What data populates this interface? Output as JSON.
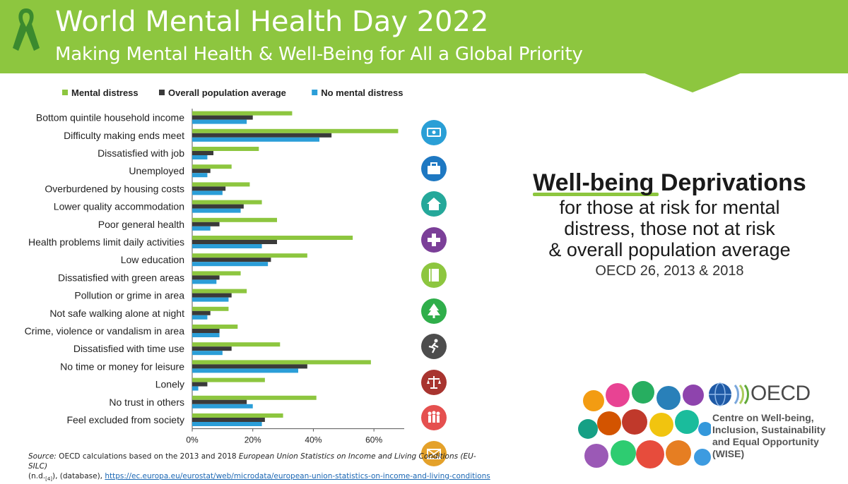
{
  "header": {
    "title": "World Mental Health Day 2022",
    "subtitle": "Making Mental Health & Well-Being for All a Global Priority"
  },
  "panel": {
    "heading_highlight": "Well-being",
    "heading_rest": " Deprivations",
    "lines": [
      "for those at risk for mental",
      "distress, those not at risk",
      "& overall population average"
    ],
    "note": "OECD 26, 2013 & 2018"
  },
  "source": {
    "label": "Source:",
    "text_before": " OECD calculations based on the 2013 and 2018 ",
    "dataset": "European Union Statistics on Income and Living Conditions (EU-SILC)",
    "ref": "(n.d.",
    "ref_sub": "[4]",
    "ref_end": "), (database), ",
    "url": "https://ec.europa.eu/eurostat/web/microdata/european-union-statistics-on-income-and-living-conditions"
  },
  "logo": {
    "oecd": "OECD",
    "wise_lines": [
      "Centre on Well-being,",
      "Inclusion, Sustainability",
      "and Equal Opportunity",
      "(WISE)"
    ]
  },
  "colors": {
    "banner": "#8dc63f",
    "mental_distress": "#8dc63f",
    "overall": "#3a3a3a",
    "no_distress": "#2b9ed8"
  },
  "icons": [
    {
      "name": "money-icon",
      "color": "#2a9fd6"
    },
    {
      "name": "briefcase-icon",
      "color": "#1e78c2"
    },
    {
      "name": "house-icon",
      "color": "#25a89a"
    },
    {
      "name": "health-cross-icon",
      "color": "#7b3f98"
    },
    {
      "name": "book-icon",
      "color": "#8dc63f"
    },
    {
      "name": "tree-icon",
      "color": "#2fae4a"
    },
    {
      "name": "runner-icon",
      "color": "#4d4d4d"
    },
    {
      "name": "scales-icon",
      "color": "#a8342f"
    },
    {
      "name": "people-icon",
      "color": "#e5504f"
    },
    {
      "name": "envelope-icon",
      "color": "#e4a12a"
    }
  ],
  "chart_data": {
    "type": "bar",
    "orientation": "horizontal",
    "categories": [
      "Bottom quintile household income",
      "Difficulty making ends meet",
      "Dissatisfied with job",
      "Unemployed",
      "Overburdened by housing costs",
      "Lower quality accommodation",
      "Poor general health",
      "Health problems limit daily activities",
      "Low education",
      "Dissatisfied with green areas",
      "Pollution or grime in area",
      "Not safe walking alone at night",
      "Crime, violence or vandalism in area",
      "Dissatisfied with time use",
      "No time or money for leisure",
      "Lonely",
      "No trust in others",
      "Feel excluded from society"
    ],
    "series": [
      {
        "name": "Mental distress",
        "color": "#8dc63f",
        "values": [
          33,
          68,
          22,
          13,
          19,
          23,
          28,
          53,
          38,
          16,
          18,
          12,
          15,
          29,
          59,
          24,
          41,
          30
        ]
      },
      {
        "name": "Overall population average",
        "color": "#3a3a3a",
        "values": [
          20,
          46,
          7,
          6,
          11,
          17,
          9,
          28,
          26,
          9,
          13,
          6,
          9,
          13,
          38,
          5,
          18,
          24
        ]
      },
      {
        "name": "No mental distress",
        "color": "#2b9ed8",
        "values": [
          18,
          42,
          5,
          5,
          10,
          16,
          6,
          23,
          25,
          8,
          12,
          5,
          9,
          10,
          35,
          2,
          20,
          23
        ]
      }
    ],
    "xlim": [
      0,
      70
    ],
    "xticks": [
      0,
      20,
      40,
      60
    ],
    "xtick_labels": [
      "0%",
      "20%",
      "40%",
      "60%"
    ],
    "legend": "top",
    "grid": false
  }
}
